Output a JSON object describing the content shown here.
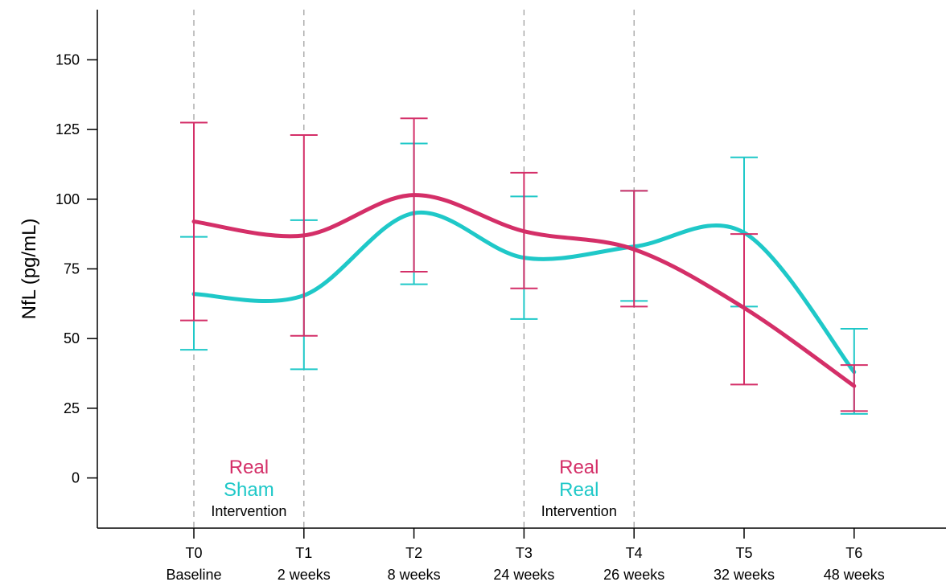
{
  "chart_data": {
    "type": "line",
    "title": "",
    "xlabel": "",
    "ylabel": "NfL (pg/mL)",
    "ylim": [
      -18,
      168
    ],
    "yticks": [
      0,
      25,
      50,
      75,
      100,
      125,
      150
    ],
    "grid": false,
    "categories": [
      {
        "label": "T0",
        "sublabel": "Baseline"
      },
      {
        "label": "T1",
        "sublabel": "2 weeks"
      },
      {
        "label": "T2",
        "sublabel": "8 weeks"
      },
      {
        "label": "T3",
        "sublabel": "24 weeks"
      },
      {
        "label": "T4",
        "sublabel": "26 weeks"
      },
      {
        "label": "T5",
        "sublabel": "32 weeks"
      },
      {
        "label": "T6",
        "sublabel": "48 weeks"
      }
    ],
    "series": [
      {
        "color": "#1fc8c8",
        "values": [
          66,
          65.5,
          95,
          79,
          83,
          88,
          38
        ],
        "err_low": [
          46,
          39,
          69.5,
          57,
          63.5,
          61.5,
          23
        ],
        "err_high": [
          86.5,
          92.5,
          120,
          101,
          103,
          115,
          53.5
        ]
      },
      {
        "color": "#d42f68",
        "values": [
          92,
          87,
          101.5,
          88.5,
          82,
          61,
          33
        ],
        "err_low": [
          56.5,
          51,
          74,
          68,
          61.5,
          33.5,
          24
        ],
        "err_high": [
          127.5,
          123,
          129,
          109.5,
          103,
          87.5,
          40.5
        ]
      }
    ],
    "intervention_markers": [
      "T0",
      "T1",
      "T3",
      "T4"
    ],
    "annotations": [
      {
        "lines": [
          {
            "text": "Real",
            "color": "#d42f68"
          },
          {
            "text": "Sham",
            "color": "#1fc8c8"
          }
        ],
        "caption": "Intervention",
        "span": [
          "T0",
          "T1"
        ]
      },
      {
        "lines": [
          {
            "text": "Real",
            "color": "#d42f68"
          },
          {
            "text": "Real",
            "color": "#1fc8c8"
          }
        ],
        "caption": "Intervention",
        "span": [
          "T3",
          "T4"
        ]
      }
    ]
  }
}
